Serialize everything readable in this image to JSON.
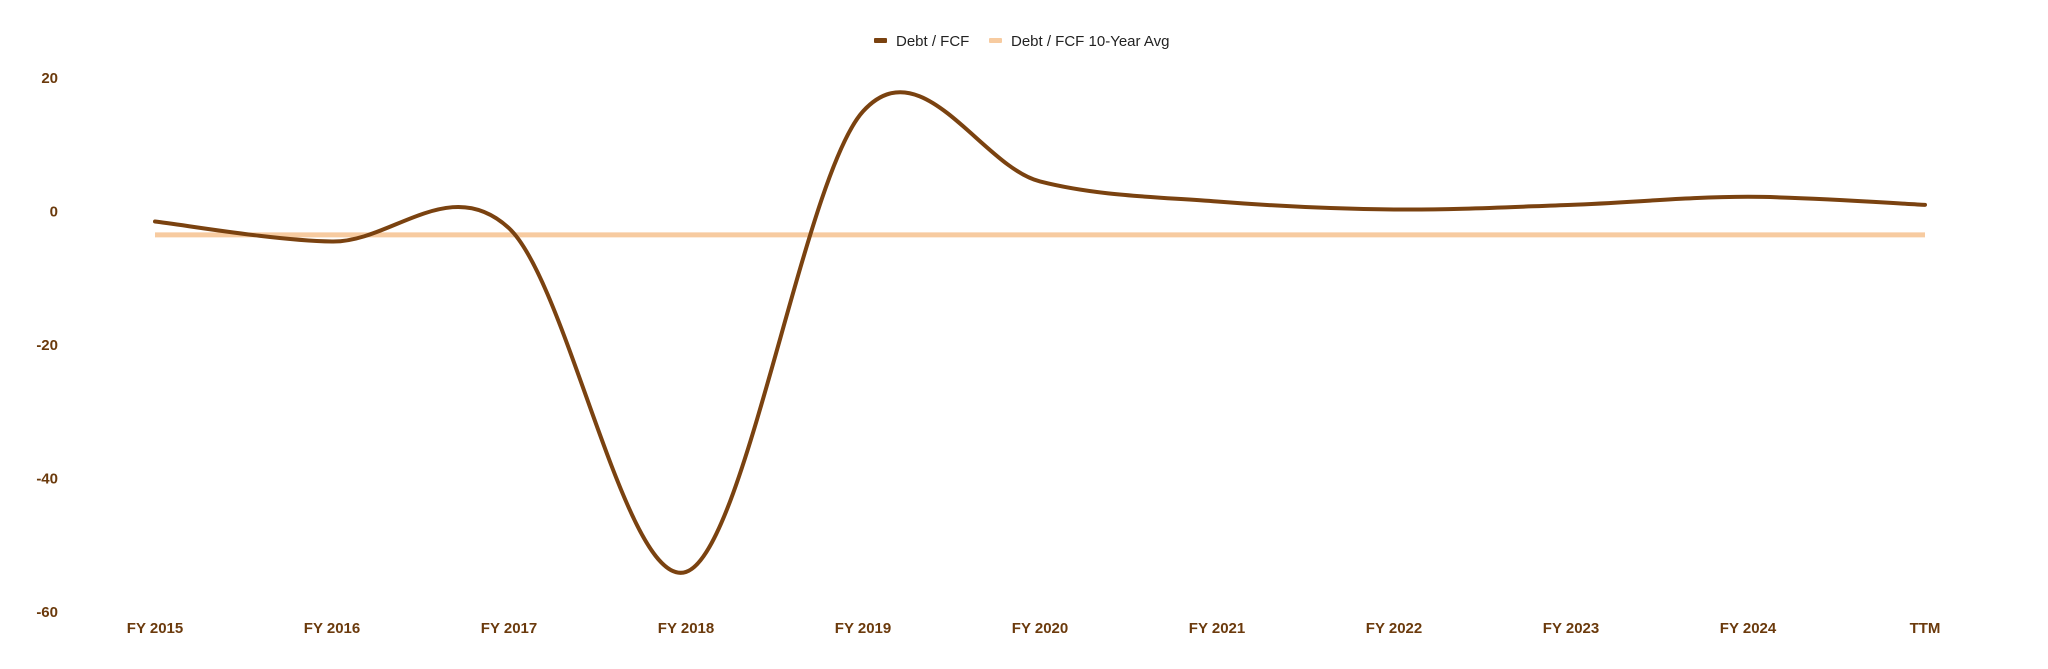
{
  "colors": {
    "series_main": "#7a4210",
    "series_avg": "#f7cba0",
    "tick_label": "#6b3a0c"
  },
  "chart_data": {
    "type": "line",
    "title": "",
    "xlabel": "",
    "ylabel": "",
    "categories": [
      "FY 2015",
      "FY 2016",
      "FY 2017",
      "FY 2018",
      "FY 2019",
      "FY 2020",
      "FY 2021",
      "FY 2022",
      "FY 2023",
      "FY 2024",
      "TTM"
    ],
    "yticks": [
      20,
      0,
      -20,
      -40,
      -60
    ],
    "ylim": [
      -60,
      20
    ],
    "grid": false,
    "legend_position": "top-center",
    "series": [
      {
        "name": "Debt / FCF",
        "values": [
          -1.5,
          -4.5,
          -2.5,
          -54.0,
          15.0,
          4.5,
          1.5,
          0.3,
          1.0,
          2.2,
          1.0
        ]
      },
      {
        "name": "Debt / FCF 10-Year Avg",
        "values": [
          -3.5,
          -3.5,
          -3.5,
          -3.5,
          -3.5,
          -3.5,
          -3.5,
          -3.5,
          -3.5,
          -3.5,
          -3.5
        ]
      }
    ]
  }
}
